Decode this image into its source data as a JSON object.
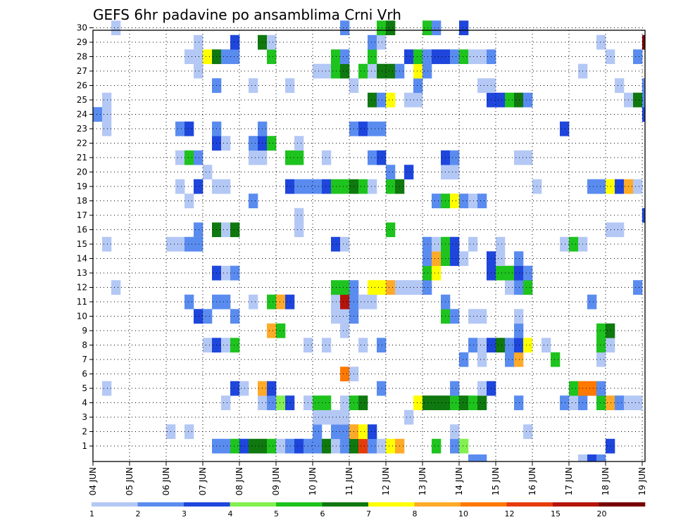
{
  "chart_data": {
    "type": "heatmap",
    "title": "GEFS 6hr padavine po ansamblima Crni Vrh",
    "xlabel": "",
    "ylabel": "",
    "x_tick_labels": [
      "04 JUN",
      "05 JUN",
      "06 JUN",
      "07 JUN",
      "08 JUN",
      "09 JUN",
      "10 JUN",
      "11 JUN",
      "12 JUN",
      "13 JUN",
      "14 JUN",
      "15 JUN",
      "16 JUN",
      "17 JUN",
      "18 JUN",
      "19 JUN"
    ],
    "y_tick_labels": [
      1,
      2,
      3,
      4,
      5,
      6,
      7,
      8,
      9,
      10,
      11,
      12,
      13,
      14,
      15,
      16,
      17,
      18,
      19,
      20,
      21,
      22,
      23,
      24,
      25,
      26,
      27,
      28,
      29,
      30
    ],
    "ensemble_members": [
      1,
      30
    ],
    "time_steps_per_day": 4,
    "time_steps": 61,
    "grid": true,
    "colorbar": {
      "position": "bottom",
      "labels": [
        "1",
        "2",
        "3",
        "4",
        "5",
        "6",
        "7",
        "8",
        "10",
        "12",
        "15",
        "20"
      ],
      "bins": [
        {
          "from": 1,
          "to": 2,
          "color": "#b4c8f5"
        },
        {
          "from": 2,
          "to": 3,
          "color": "#5a8cf0"
        },
        {
          "from": 3,
          "to": 4,
          "color": "#1e46dc"
        },
        {
          "from": 4,
          "to": 5,
          "color": "#82f050"
        },
        {
          "from": 5,
          "to": 6,
          "color": "#1ec31e"
        },
        {
          "from": 6,
          "to": 7,
          "color": "#0f780f"
        },
        {
          "from": 7,
          "to": 8,
          "color": "#ffff00"
        },
        {
          "from": 8,
          "to": 10,
          "color": "#ffaa28"
        },
        {
          "from": 10,
          "to": 12,
          "color": "#ff7800"
        },
        {
          "from": 12,
          "to": 15,
          "color": "#e63c0a"
        },
        {
          "from": 15,
          "to": 20,
          "color": "#b4140a"
        },
        {
          "from": 20,
          "to": 25,
          "color": "#780000"
        }
      ]
    },
    "cells_format": [
      "member",
      "time_step_index",
      "precip_mm"
    ],
    "cells": [
      [
        1,
        13,
        2
      ],
      [
        1,
        14,
        2
      ],
      [
        1,
        15,
        5
      ],
      [
        1,
        16,
        3
      ],
      [
        1,
        17,
        6
      ],
      [
        1,
        18,
        6
      ],
      [
        1,
        19,
        5
      ],
      [
        1,
        20,
        1.5
      ],
      [
        1,
        21,
        2
      ],
      [
        1,
        22,
        3
      ],
      [
        1,
        23,
        2
      ],
      [
        1,
        24,
        2
      ],
      [
        1,
        25,
        6
      ],
      [
        1,
        26,
        1.5
      ],
      [
        1,
        27,
        2
      ],
      [
        1,
        28,
        6
      ],
      [
        1,
        29,
        13
      ],
      [
        1,
        30,
        2
      ],
      [
        1,
        31,
        1.5
      ],
      [
        1,
        32,
        7
      ],
      [
        1,
        33,
        9
      ],
      [
        1,
        37,
        5
      ],
      [
        1,
        39,
        2
      ],
      [
        1,
        40,
        4
      ],
      [
        1,
        56,
        3
      ],
      [
        2,
        8,
        1.5
      ],
      [
        2,
        10,
        1.5
      ],
      [
        2,
        24,
        2
      ],
      [
        2,
        26,
        2
      ],
      [
        2,
        27,
        2
      ],
      [
        2,
        28,
        9
      ],
      [
        2,
        29,
        7
      ],
      [
        2,
        30,
        3
      ],
      [
        2,
        39,
        1.5
      ],
      [
        2,
        47,
        1.5
      ],
      [
        3,
        24,
        1.5
      ],
      [
        3,
        25,
        1.5
      ],
      [
        3,
        26,
        1.5
      ],
      [
        3,
        27,
        1.5
      ],
      [
        3,
        34,
        1.5
      ],
      [
        4,
        14,
        1.5
      ],
      [
        4,
        18,
        1.5
      ],
      [
        4,
        19,
        2
      ],
      [
        4,
        20,
        4
      ],
      [
        4,
        21,
        3
      ],
      [
        4,
        23,
        1.5
      ],
      [
        4,
        24,
        5
      ],
      [
        4,
        25,
        5
      ],
      [
        4,
        27,
        1.5
      ],
      [
        4,
        28,
        5
      ],
      [
        4,
        29,
        6
      ],
      [
        4,
        35,
        7
      ],
      [
        4,
        36,
        6
      ],
      [
        4,
        37,
        6
      ],
      [
        4,
        38,
        6
      ],
      [
        4,
        39,
        5
      ],
      [
        4,
        40,
        6
      ],
      [
        4,
        41,
        5
      ],
      [
        4,
        42,
        6
      ],
      [
        4,
        46,
        2
      ],
      [
        4,
        51,
        2
      ],
      [
        4,
        52,
        1.5
      ],
      [
        4,
        53,
        2
      ],
      [
        4,
        55,
        5
      ],
      [
        4,
        56,
        9
      ],
      [
        4,
        57,
        2
      ],
      [
        4,
        58,
        1.5
      ],
      [
        4,
        59,
        1.5
      ],
      [
        5,
        1,
        1.5
      ],
      [
        5,
        15,
        3
      ],
      [
        5,
        16,
        1.5
      ],
      [
        5,
        18,
        9
      ],
      [
        5,
        19,
        3
      ],
      [
        5,
        31,
        2
      ],
      [
        5,
        39,
        2
      ],
      [
        5,
        42,
        1.5
      ],
      [
        5,
        43,
        3
      ],
      [
        5,
        52,
        5
      ],
      [
        5,
        53,
        11
      ],
      [
        5,
        54,
        11
      ],
      [
        5,
        55,
        2
      ],
      [
        6,
        27,
        11
      ],
      [
        6,
        28,
        1.5
      ],
      [
        7,
        40,
        2
      ],
      [
        7,
        42,
        1.5
      ],
      [
        7,
        45,
        2
      ],
      [
        7,
        46,
        9
      ],
      [
        7,
        50,
        5
      ],
      [
        7,
        55,
        1.5
      ],
      [
        8,
        12,
        1.5
      ],
      [
        8,
        13,
        3
      ],
      [
        8,
        14,
        1.5
      ],
      [
        8,
        15,
        5
      ],
      [
        8,
        23,
        1.5
      ],
      [
        8,
        25,
        1.5
      ],
      [
        8,
        29,
        1.5
      ],
      [
        8,
        31,
        2
      ],
      [
        8,
        41,
        2
      ],
      [
        8,
        42,
        1.5
      ],
      [
        8,
        43,
        3
      ],
      [
        8,
        44,
        6
      ],
      [
        8,
        45,
        2
      ],
      [
        8,
        46,
        3
      ],
      [
        8,
        47,
        7
      ],
      [
        8,
        49,
        1.5
      ],
      [
        8,
        55,
        5
      ],
      [
        8,
        56,
        1.5
      ],
      [
        9,
        19,
        9
      ],
      [
        9,
        20,
        5
      ],
      [
        9,
        27,
        1.5
      ],
      [
        9,
        46,
        2
      ],
      [
        9,
        55,
        5
      ],
      [
        9,
        56,
        6
      ],
      [
        10,
        11,
        3
      ],
      [
        10,
        12,
        2
      ],
      [
        10,
        15,
        2
      ],
      [
        10,
        26,
        1.5
      ],
      [
        10,
        27,
        1.5
      ],
      [
        10,
        28,
        2
      ],
      [
        10,
        38,
        5
      ],
      [
        10,
        39,
        2
      ],
      [
        10,
        41,
        1.5
      ],
      [
        10,
        42,
        1.5
      ],
      [
        10,
        46,
        1.5
      ],
      [
        11,
        10,
        2
      ],
      [
        11,
        13,
        2
      ],
      [
        11,
        14,
        2
      ],
      [
        11,
        17,
        1.5
      ],
      [
        11,
        19,
        5
      ],
      [
        11,
        20,
        9
      ],
      [
        11,
        21,
        3
      ],
      [
        11,
        26,
        1.5
      ],
      [
        11,
        27,
        15
      ],
      [
        11,
        28,
        2
      ],
      [
        11,
        29,
        1.5
      ],
      [
        11,
        30,
        1.5
      ],
      [
        11,
        38,
        2
      ],
      [
        11,
        54,
        2
      ],
      [
        12,
        2,
        1.5
      ],
      [
        12,
        26,
        5
      ],
      [
        12,
        27,
        5
      ],
      [
        12,
        28,
        2
      ],
      [
        12,
        30,
        7
      ],
      [
        12,
        31,
        7
      ],
      [
        12,
        32,
        9
      ],
      [
        12,
        33,
        1.5
      ],
      [
        12,
        34,
        1.5
      ],
      [
        12,
        35,
        1.5
      ],
      [
        12,
        36,
        2
      ],
      [
        12,
        45,
        1.5
      ],
      [
        12,
        46,
        2
      ],
      [
        12,
        47,
        5
      ],
      [
        12,
        59,
        2
      ],
      [
        13,
        13,
        3
      ],
      [
        13,
        14,
        1.5
      ],
      [
        13,
        15,
        2
      ],
      [
        13,
        36,
        5
      ],
      [
        13,
        37,
        7
      ],
      [
        13,
        43,
        3
      ],
      [
        13,
        44,
        5
      ],
      [
        13,
        45,
        5
      ],
      [
        13,
        46,
        3
      ],
      [
        13,
        47,
        2
      ],
      [
        14,
        36,
        2
      ],
      [
        14,
        37,
        9
      ],
      [
        14,
        38,
        5
      ],
      [
        14,
        39,
        3
      ],
      [
        14,
        40,
        1.5
      ],
      [
        14,
        43,
        3
      ],
      [
        14,
        44,
        1.5
      ],
      [
        14,
        46,
        2
      ],
      [
        15,
        1,
        1.5
      ],
      [
        15,
        8,
        1.5
      ],
      [
        15,
        9,
        1.5
      ],
      [
        15,
        10,
        2
      ],
      [
        15,
        11,
        2
      ],
      [
        15,
        26,
        3
      ],
      [
        15,
        27,
        1.5
      ],
      [
        15,
        36,
        2
      ],
      [
        15,
        37,
        1.5
      ],
      [
        15,
        38,
        5
      ],
      [
        15,
        39,
        3
      ],
      [
        15,
        41,
        1.5
      ],
      [
        15,
        44,
        1.5
      ],
      [
        15,
        51,
        1.5
      ],
      [
        15,
        52,
        5
      ],
      [
        15,
        53,
        1.5
      ],
      [
        16,
        11,
        2
      ],
      [
        16,
        13,
        6
      ],
      [
        16,
        14,
        1.5
      ],
      [
        16,
        15,
        6
      ],
      [
        16,
        22,
        1.5
      ],
      [
        16,
        32,
        5
      ],
      [
        16,
        56,
        1.5
      ],
      [
        16,
        57,
        1.5
      ],
      [
        17,
        22,
        1.5
      ],
      [
        17,
        60,
        3
      ],
      [
        18,
        10,
        1.5
      ],
      [
        18,
        17,
        2
      ],
      [
        18,
        37,
        2
      ],
      [
        18,
        38,
        5
      ],
      [
        18,
        39,
        7
      ],
      [
        18,
        40,
        2
      ],
      [
        18,
        41,
        1.5
      ],
      [
        18,
        42,
        2
      ],
      [
        19,
        9,
        1.5
      ],
      [
        19,
        11,
        3
      ],
      [
        19,
        13,
        1.5
      ],
      [
        19,
        14,
        1.5
      ],
      [
        19,
        21,
        3
      ],
      [
        19,
        22,
        2
      ],
      [
        19,
        23,
        2
      ],
      [
        19,
        24,
        2
      ],
      [
        19,
        25,
        3
      ],
      [
        19,
        26,
        5
      ],
      [
        19,
        27,
        5
      ],
      [
        19,
        28,
        6
      ],
      [
        19,
        29,
        5
      ],
      [
        19,
        30,
        1.5
      ],
      [
        19,
        32,
        5
      ],
      [
        19,
        33,
        6
      ],
      [
        19,
        48,
        1.5
      ],
      [
        19,
        54,
        2
      ],
      [
        19,
        55,
        2
      ],
      [
        19,
        56,
        7
      ],
      [
        19,
        57,
        3
      ],
      [
        19,
        58,
        9
      ],
      [
        19,
        59,
        1.5
      ],
      [
        20,
        12,
        1.5
      ],
      [
        20,
        32,
        2
      ],
      [
        20,
        34,
        3
      ],
      [
        20,
        38,
        1.5
      ],
      [
        20,
        39,
        1.5
      ],
      [
        21,
        9,
        1.5
      ],
      [
        21,
        10,
        5
      ],
      [
        21,
        11,
        2
      ],
      [
        21,
        17,
        1.5
      ],
      [
        21,
        18,
        1.5
      ],
      [
        21,
        21,
        5
      ],
      [
        21,
        22,
        5
      ],
      [
        21,
        25,
        1.5
      ],
      [
        21,
        30,
        2
      ],
      [
        21,
        31,
        3
      ],
      [
        21,
        38,
        3
      ],
      [
        21,
        39,
        2
      ],
      [
        21,
        46,
        1.5
      ],
      [
        21,
        47,
        1.5
      ],
      [
        22,
        13,
        3
      ],
      [
        22,
        14,
        1.5
      ],
      [
        22,
        17,
        2
      ],
      [
        22,
        18,
        3
      ],
      [
        22,
        19,
        5
      ],
      [
        22,
        22,
        1.5
      ],
      [
        23,
        1,
        1.5
      ],
      [
        23,
        9,
        2
      ],
      [
        23,
        10,
        3
      ],
      [
        23,
        13,
        2
      ],
      [
        23,
        18,
        2
      ],
      [
        23,
        28,
        2
      ],
      [
        23,
        29,
        3
      ],
      [
        23,
        30,
        2
      ],
      [
        23,
        31,
        2
      ],
      [
        23,
        51,
        3
      ],
      [
        24,
        0,
        2
      ],
      [
        24,
        1,
        1.5
      ],
      [
        24,
        60,
        3
      ],
      [
        25,
        1,
        1.5
      ],
      [
        25,
        30,
        6
      ],
      [
        25,
        31,
        2
      ],
      [
        25,
        32,
        7
      ],
      [
        25,
        34,
        1.5
      ],
      [
        25,
        35,
        1.5
      ],
      [
        25,
        43,
        3
      ],
      [
        25,
        44,
        3
      ],
      [
        25,
        45,
        5
      ],
      [
        25,
        46,
        6
      ],
      [
        25,
        47,
        2
      ],
      [
        25,
        58,
        1.5
      ],
      [
        25,
        59,
        6
      ],
      [
        25,
        60,
        2
      ],
      [
        26,
        13,
        2
      ],
      [
        26,
        17,
        1.5
      ],
      [
        26,
        21,
        1.5
      ],
      [
        26,
        28,
        1.5
      ],
      [
        26,
        35,
        2
      ],
      [
        26,
        42,
        1.5
      ],
      [
        26,
        43,
        1.5
      ],
      [
        26,
        57,
        1.5
      ],
      [
        26,
        60,
        2
      ],
      [
        27,
        11,
        1.5
      ],
      [
        27,
        24,
        1.5
      ],
      [
        27,
        25,
        1.5
      ],
      [
        27,
        26,
        5
      ],
      [
        27,
        27,
        6
      ],
      [
        27,
        29,
        5
      ],
      [
        27,
        30,
        1.5
      ],
      [
        27,
        31,
        6
      ],
      [
        27,
        32,
        6
      ],
      [
        27,
        33,
        2
      ],
      [
        27,
        35,
        7
      ],
      [
        27,
        36,
        2
      ],
      [
        27,
        53,
        1.5
      ],
      [
        28,
        10,
        1.5
      ],
      [
        28,
        11,
        1.5
      ],
      [
        28,
        12,
        7
      ],
      [
        28,
        13,
        6
      ],
      [
        28,
        14,
        2
      ],
      [
        28,
        15,
        2
      ],
      [
        28,
        19,
        5
      ],
      [
        28,
        26,
        5
      ],
      [
        28,
        27,
        2
      ],
      [
        28,
        30,
        5
      ],
      [
        28,
        34,
        3
      ],
      [
        28,
        35,
        5
      ],
      [
        28,
        36,
        2
      ],
      [
        28,
        37,
        3
      ],
      [
        28,
        38,
        3
      ],
      [
        28,
        39,
        2
      ],
      [
        28,
        40,
        5
      ],
      [
        28,
        41,
        1.5
      ],
      [
        28,
        42,
        1.5
      ],
      [
        28,
        43,
        2
      ],
      [
        28,
        56,
        1.5
      ],
      [
        28,
        59,
        2
      ],
      [
        29,
        11,
        1.5
      ],
      [
        29,
        15,
        3
      ],
      [
        29,
        18,
        6
      ],
      [
        29,
        19,
        1.5
      ],
      [
        29,
        30,
        2
      ],
      [
        29,
        31,
        1.5
      ],
      [
        29,
        55,
        1.5
      ],
      [
        29,
        60,
        22
      ],
      [
        30,
        2,
        1.5
      ],
      [
        30,
        27,
        2
      ],
      [
        30,
        31,
        5
      ],
      [
        30,
        32,
        6
      ],
      [
        30,
        36,
        5
      ],
      [
        30,
        37,
        2
      ],
      [
        30,
        40,
        3
      ]
    ],
    "bottom_strip_cells": [
      [
        41,
        2
      ],
      [
        42,
        2
      ],
      [
        53,
        1.5
      ],
      [
        54,
        3
      ],
      [
        55,
        2
      ]
    ]
  }
}
